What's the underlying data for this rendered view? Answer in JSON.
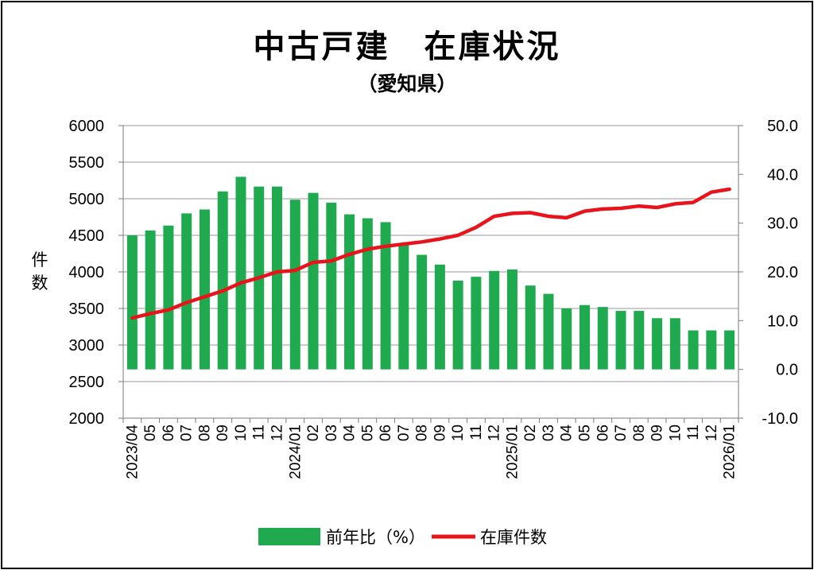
{
  "chart_data": {
    "type": "bar+line",
    "title": "中古戸建　在庫状況",
    "subtitle": "（愛知県）",
    "ylabel": "件\n数",
    "categories": [
      "2023/04",
      "05",
      "06",
      "07",
      "08",
      "09",
      "10",
      "11",
      "12",
      "2024/01",
      "02",
      "03",
      "04",
      "05",
      "06",
      "07",
      "08",
      "09",
      "10",
      "11",
      "12",
      "2025/01",
      "02",
      "03",
      "04",
      "05",
      "06",
      "07",
      "08",
      "09",
      "10",
      "11",
      "12",
      "2026/01"
    ],
    "series": [
      {
        "name": "前年比（%）",
        "type": "bar",
        "axis": "right",
        "color": "#1faa4f",
        "values": [
          27.5,
          28.5,
          29.5,
          32.0,
          32.8,
          36.5,
          39.5,
          37.5,
          37.5,
          34.8,
          36.2,
          34.2,
          31.8,
          31.0,
          30.2,
          25.8,
          23.5,
          21.5,
          18.2,
          19.0,
          20.2,
          20.5,
          17.2,
          15.5,
          12.5,
          13.2,
          12.8,
          12.0,
          12.0,
          10.5,
          10.5,
          8.0,
          8.0,
          8.0
        ]
      },
      {
        "name": "在庫件数",
        "type": "line",
        "axis": "left",
        "color": "#e8141b",
        "values": [
          3370,
          3430,
          3480,
          3580,
          3660,
          3740,
          3850,
          3920,
          4000,
          4020,
          4130,
          4150,
          4240,
          4310,
          4350,
          4380,
          4410,
          4450,
          4500,
          4610,
          4760,
          4800,
          4810,
          4760,
          4740,
          4830,
          4860,
          4870,
          4900,
          4880,
          4930,
          4950,
          5090,
          5130
        ]
      }
    ],
    "left_axis": {
      "min": 2000,
      "max": 6000,
      "step": 500,
      "ticks": [
        "2000",
        "2500",
        "3000",
        "3500",
        "4000",
        "4500",
        "5000",
        "5500",
        "6000"
      ]
    },
    "right_axis": {
      "min": -10,
      "max": 50,
      "step": 10,
      "ticks": [
        "-10.0",
        "0.0",
        "10.0",
        "20.0",
        "30.0",
        "40.0",
        "50.0"
      ],
      "negative_color": "#e8141b"
    },
    "grid": true,
    "legend": "bottom"
  }
}
